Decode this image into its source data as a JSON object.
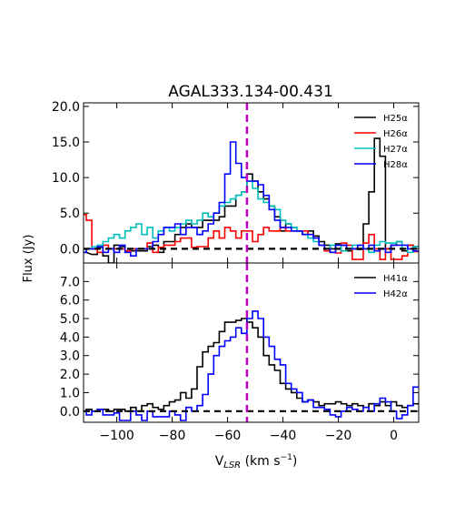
{
  "chart_data": [
    {
      "type": "line",
      "title": "AGAL333.134-00.431",
      "xlabel": "",
      "ylabel": "",
      "xlim": [
        -112,
        9
      ],
      "ylim": [
        -2.0,
        20.5
      ],
      "xticks": [
        -100,
        -80,
        -60,
        -40,
        -20,
        0
      ],
      "yticks": [
        0.0,
        5.0,
        10.0,
        15.0,
        20.0
      ],
      "ytick_labels": [
        "0.0",
        "5.0",
        "10.0",
        "15.0",
        "20.0"
      ],
      "grid": false,
      "legend": "top-right",
      "vline_x": -53,
      "baseline_y": 0,
      "series": [
        {
          "name": "H25α",
          "color": "#000000",
          "x": [
            -112,
            -108,
            -106,
            -104,
            -102,
            -100,
            -98,
            -96,
            -94,
            -92,
            -90,
            -88,
            -86,
            -84,
            -82,
            -80,
            -78,
            -76,
            -74,
            -72,
            -70,
            -68,
            -66,
            -64,
            -62,
            -60,
            -58,
            -56,
            -54,
            -52,
            -50,
            -48,
            -46,
            -44,
            -42,
            -40,
            -38,
            -36,
            -34,
            -32,
            -30,
            -28,
            -26,
            -24,
            -22,
            -20,
            -18,
            -16,
            -14,
            -12,
            -10,
            -8,
            -6,
            -4,
            -2,
            0,
            2,
            4,
            6,
            8
          ],
          "values": [
            -0.5,
            -0.8,
            0.2,
            -1.0,
            -2.0,
            0.5,
            0.3,
            -0.3,
            -0.3,
            -0.3,
            -0.3,
            0.3,
            0.5,
            -0.5,
            1.0,
            1.0,
            2.0,
            3.0,
            3.5,
            3.0,
            3.0,
            4.0,
            4.0,
            4.0,
            4.5,
            6.0,
            6.0,
            7.5,
            8.0,
            10.5,
            9.5,
            8.0,
            7.0,
            6.0,
            4.5,
            2.5,
            3.5,
            3.0,
            2.5,
            2.0,
            2.5,
            1.8,
            1.0,
            0.5,
            0.0,
            0.7,
            0.5,
            -0.3,
            0.0,
            -0.1,
            3.5,
            8.0,
            15.5,
            13.0,
            0.0,
            0.5,
            1.0,
            -0.3,
            0.5,
            0.3
          ]
        },
        {
          "name": "H26α",
          "color": "#ff0000",
          "x": [
            -112,
            -110,
            -108,
            -106,
            -104,
            -102,
            -100,
            -98,
            -96,
            -94,
            -92,
            -90,
            -88,
            -86,
            -84,
            -82,
            -80,
            -78,
            -76,
            -74,
            -72,
            -70,
            -68,
            -66,
            -64,
            -62,
            -60,
            -58,
            -56,
            -54,
            -52,
            -50,
            -48,
            -46,
            -44,
            -42,
            -40,
            -38,
            -36,
            -34,
            -32,
            -30,
            -28,
            -26,
            -24,
            -22,
            -20,
            -18,
            -16,
            -14,
            -12,
            -10,
            -8,
            -6,
            -4,
            -2,
            0,
            2,
            4,
            6,
            8
          ],
          "values": [
            4.8,
            4.0,
            0.0,
            -0.5,
            0.5,
            0.0,
            0.0,
            0.0,
            -0.3,
            0.0,
            0.0,
            0.0,
            0.8,
            -0.5,
            0.2,
            0.5,
            0.5,
            1.0,
            1.5,
            1.5,
            0.2,
            0.3,
            0.3,
            1.5,
            2.5,
            1.5,
            3.0,
            2.5,
            1.5,
            2.5,
            2.5,
            1.0,
            2.0,
            3.0,
            2.5,
            2.5,
            3.0,
            2.5,
            2.5,
            2.5,
            2.5,
            2.0,
            1.5,
            0.5,
            -0.3,
            -0.5,
            -0.6,
            0.8,
            0.5,
            -1.5,
            -1.5,
            0.8,
            2.0,
            0.0,
            -1.5,
            0.0,
            -1.5,
            -1.5,
            -1.0,
            0.5,
            -0.4
          ]
        },
        {
          "name": "H27α",
          "color": "#00bfbf",
          "x": [
            -112,
            -110,
            -108,
            -106,
            -104,
            -102,
            -100,
            -98,
            -96,
            -94,
            -92,
            -90,
            -88,
            -86,
            -84,
            -82,
            -80,
            -78,
            -76,
            -74,
            -72,
            -70,
            -68,
            -66,
            -64,
            -62,
            -60,
            -58,
            -56,
            -54,
            -52,
            -50,
            -48,
            -46,
            -44,
            -42,
            -40,
            -38,
            -36,
            -34,
            -32,
            -30,
            -28,
            -26,
            -24,
            -22,
            -20,
            -18,
            -16,
            -14,
            -12,
            -10,
            -8,
            -6,
            -4,
            -2,
            0,
            2,
            4,
            6,
            8
          ],
          "values": [
            0.0,
            0.0,
            0.3,
            0.5,
            1.0,
            1.5,
            2.0,
            1.5,
            2.5,
            3.0,
            3.5,
            2.0,
            3.0,
            1.5,
            2.5,
            3.0,
            2.5,
            3.0,
            3.5,
            4.0,
            3.5,
            4.0,
            5.0,
            4.5,
            5.0,
            6.0,
            6.5,
            7.0,
            7.5,
            8.0,
            9.5,
            8.5,
            7.0,
            6.5,
            6.0,
            5.5,
            4.0,
            3.5,
            3.0,
            2.5,
            2.0,
            1.5,
            1.0,
            0.5,
            0.0,
            0.5,
            0.5,
            -0.3,
            0.0,
            0.5,
            0.5,
            0.0,
            -0.5,
            0.5,
            1.0,
            0.8,
            0.8,
            1.0,
            0.0,
            -0.5,
            0.3
          ]
        },
        {
          "name": "H28α",
          "color": "#0000ff",
          "x": [
            -112,
            -110,
            -108,
            -106,
            -104,
            -102,
            -100,
            -98,
            -96,
            -94,
            -92,
            -90,
            -88,
            -86,
            -84,
            -82,
            -80,
            -78,
            -76,
            -74,
            -72,
            -70,
            -68,
            -66,
            -64,
            -62,
            -60,
            -58,
            -56,
            -54,
            -52,
            -50,
            -48,
            -46,
            -44,
            -42,
            -40,
            -38,
            -36,
            -34,
            -32,
            -30,
            -28,
            -26,
            -24,
            -22,
            -20,
            -18,
            -16,
            -14,
            -12,
            -10,
            -8,
            -6,
            -4,
            -2,
            0,
            2,
            4,
            6,
            8
          ],
          "values": [
            -0.5,
            0.0,
            0.0,
            0.3,
            -0.5,
            0.0,
            -0.5,
            0.5,
            -0.5,
            -1.0,
            0.0,
            0.0,
            0.0,
            1.0,
            2.0,
            3.0,
            3.0,
            3.5,
            2.0,
            3.0,
            3.0,
            2.0,
            2.5,
            3.5,
            5.0,
            6.5,
            10.5,
            15.0,
            12.0,
            10.0,
            9.5,
            9.5,
            9.0,
            7.5,
            5.5,
            4.0,
            3.0,
            3.0,
            2.5,
            2.5,
            2.0,
            2.0,
            1.5,
            0.5,
            0.0,
            -0.5,
            0.5,
            0.5,
            0.0,
            0.0,
            0.5,
            0.0,
            0.5,
            -0.3,
            0.0,
            -0.5,
            0.5,
            0.5,
            0.5,
            0.0,
            -0.3
          ]
        }
      ]
    },
    {
      "type": "line",
      "title": "",
      "xlabel": "V_LSR (km s^-1)",
      "ylabel": "",
      "xlim": [
        -112,
        9
      ],
      "ylim": [
        -0.6,
        8.0
      ],
      "xticks": [
        -100,
        -80,
        -60,
        -40,
        -20,
        0
      ],
      "yticks": [
        0.0,
        1.0,
        2.0,
        3.0,
        4.0,
        5.0,
        6.0,
        7.0
      ],
      "ytick_labels": [
        "0.0",
        "1.0",
        "2.0",
        "3.0",
        "4.0",
        "5.0",
        "6.0",
        "7.0"
      ],
      "grid": false,
      "legend": "top-right",
      "vline_x": -53,
      "baseline_y": 0,
      "series": [
        {
          "name": "H41α",
          "color": "#000000",
          "x": [
            -112,
            -110,
            -108,
            -106,
            -104,
            -102,
            -100,
            -98,
            -96,
            -94,
            -92,
            -90,
            -88,
            -86,
            -84,
            -82,
            -80,
            -78,
            -76,
            -74,
            -72,
            -70,
            -68,
            -66,
            -64,
            -62,
            -60,
            -58,
            -56,
            -54,
            -52,
            -50,
            -48,
            -46,
            -44,
            -42,
            -40,
            -38,
            -36,
            -34,
            -32,
            -30,
            -28,
            -26,
            -24,
            -22,
            -20,
            -18,
            -16,
            -14,
            -12,
            -10,
            -8,
            -6,
            -4,
            -2,
            0,
            2,
            4,
            6,
            8
          ],
          "values": [
            0.0,
            0.1,
            0.0,
            0.1,
            0.1,
            0.0,
            0.1,
            0.1,
            0.0,
            0.2,
            0.0,
            0.3,
            0.4,
            0.2,
            0.1,
            0.3,
            0.5,
            0.6,
            1.0,
            0.7,
            1.2,
            2.4,
            3.2,
            3.5,
            3.7,
            4.3,
            4.8,
            4.8,
            4.9,
            5.0,
            4.8,
            4.5,
            4.0,
            3.0,
            2.5,
            2.2,
            1.5,
            1.2,
            1.0,
            0.7,
            0.5,
            0.6,
            0.5,
            0.3,
            0.4,
            0.4,
            0.5,
            0.4,
            0.3,
            0.4,
            0.3,
            0.2,
            0.4,
            0.3,
            0.5,
            0.3,
            0.5,
            0.3,
            0.2,
            0.3,
            0.4
          ]
        },
        {
          "name": "H42α",
          "color": "#0000ff",
          "x": [
            -112,
            -110,
            -108,
            -106,
            -104,
            -102,
            -100,
            -98,
            -96,
            -94,
            -92,
            -90,
            -88,
            -86,
            -84,
            -82,
            -80,
            -78,
            -76,
            -74,
            -72,
            -70,
            -68,
            -66,
            -64,
            -62,
            -60,
            -58,
            -56,
            -54,
            -52,
            -50,
            -48,
            -46,
            -44,
            -42,
            -40,
            -38,
            -36,
            -34,
            -32,
            -30,
            -28,
            -26,
            -24,
            -22,
            -20,
            -18,
            -16,
            -14,
            -12,
            -10,
            -8,
            -6,
            -4,
            -2,
            0,
            2,
            4,
            6,
            8
          ],
          "values": [
            0.0,
            -0.2,
            0.0,
            0.1,
            -0.2,
            -0.2,
            -0.1,
            -0.5,
            -0.5,
            0.0,
            -0.2,
            -0.5,
            0.0,
            -0.3,
            -0.3,
            -0.3,
            0.0,
            -0.2,
            -0.5,
            0.2,
            0.0,
            0.3,
            0.9,
            2.0,
            3.0,
            3.5,
            3.8,
            4.0,
            4.5,
            4.2,
            5.0,
            5.4,
            5.0,
            4.0,
            3.5,
            2.8,
            2.5,
            1.5,
            1.2,
            1.0,
            0.5,
            0.6,
            0.2,
            0.2,
            0.1,
            -0.2,
            -0.3,
            0.0,
            0.2,
            0.1,
            0.0,
            0.2,
            0.0,
            0.4,
            0.7,
            0.5,
            0.0,
            -0.4,
            -0.2,
            0.3,
            1.3
          ]
        }
      ]
    }
  ],
  "ylabel": "Flux (Jy)",
  "xlabel": "V_LSR (km s^-1)"
}
